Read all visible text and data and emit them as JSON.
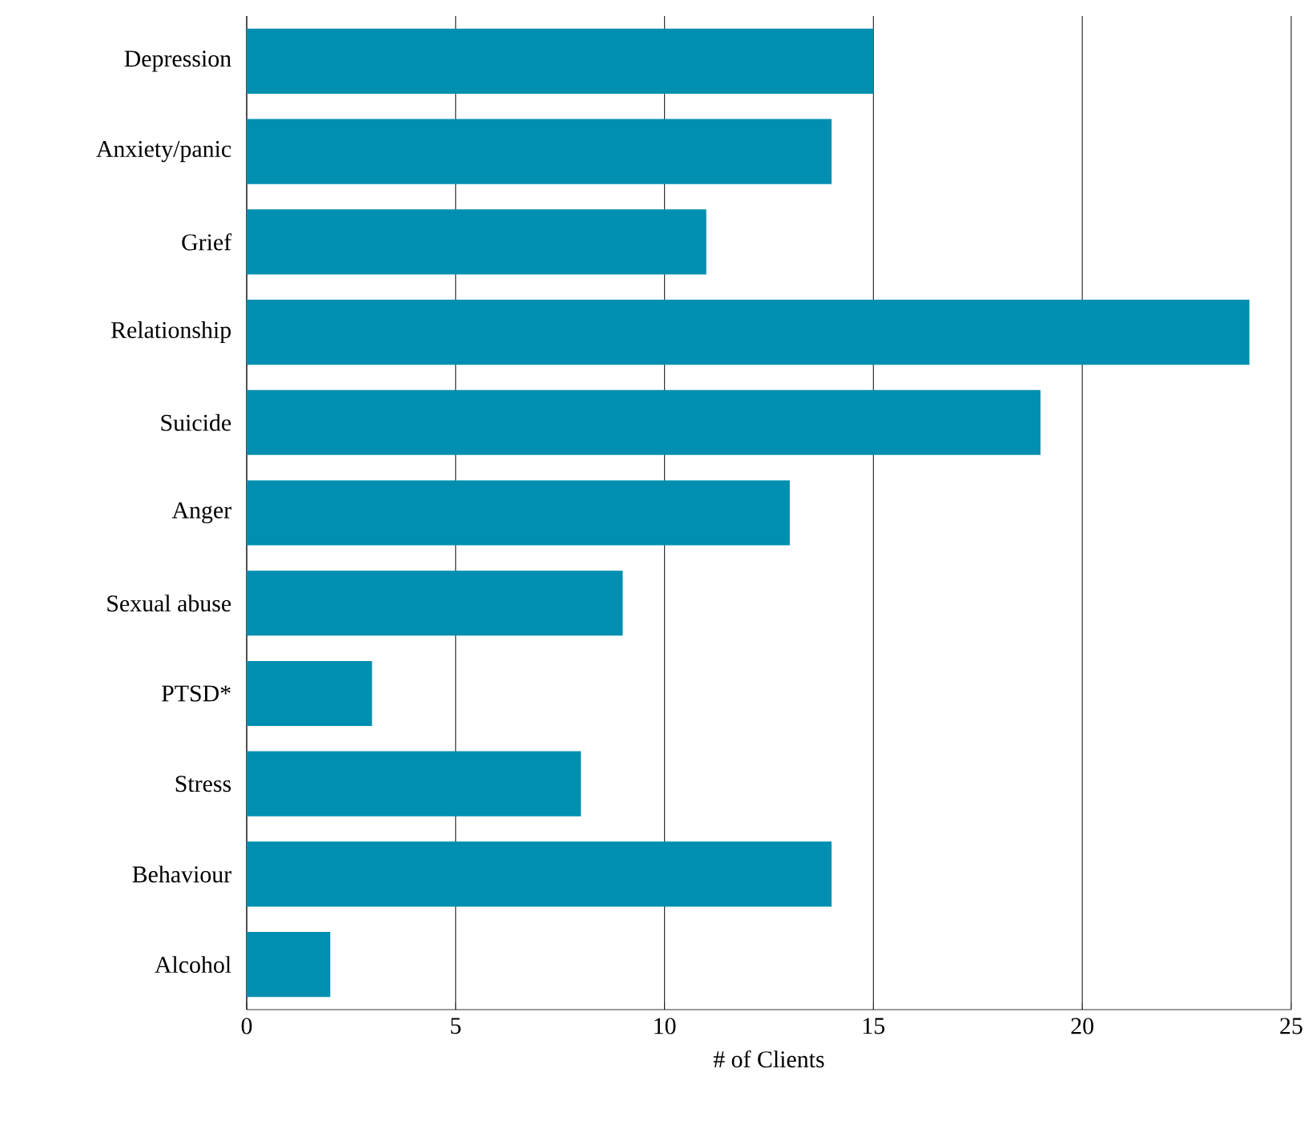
{
  "chart_data": {
    "type": "bar",
    "orientation": "horizontal",
    "xlabel": "# of Clients",
    "categories": [
      "Depression",
      "Anxiety/panic",
      "Grief",
      "Relationship",
      "Suicide",
      "Anger",
      "Sexual abuse",
      "PTSD*",
      "Stress",
      "Behaviour",
      "Alcohol"
    ],
    "values": [
      15,
      14,
      11,
      24,
      19,
      13,
      9,
      3,
      8,
      14,
      2
    ],
    "color": "#008fb0",
    "xlim": [
      0,
      25
    ],
    "xticks": [
      0,
      5,
      10,
      15,
      20,
      25
    ],
    "grid": "x"
  }
}
